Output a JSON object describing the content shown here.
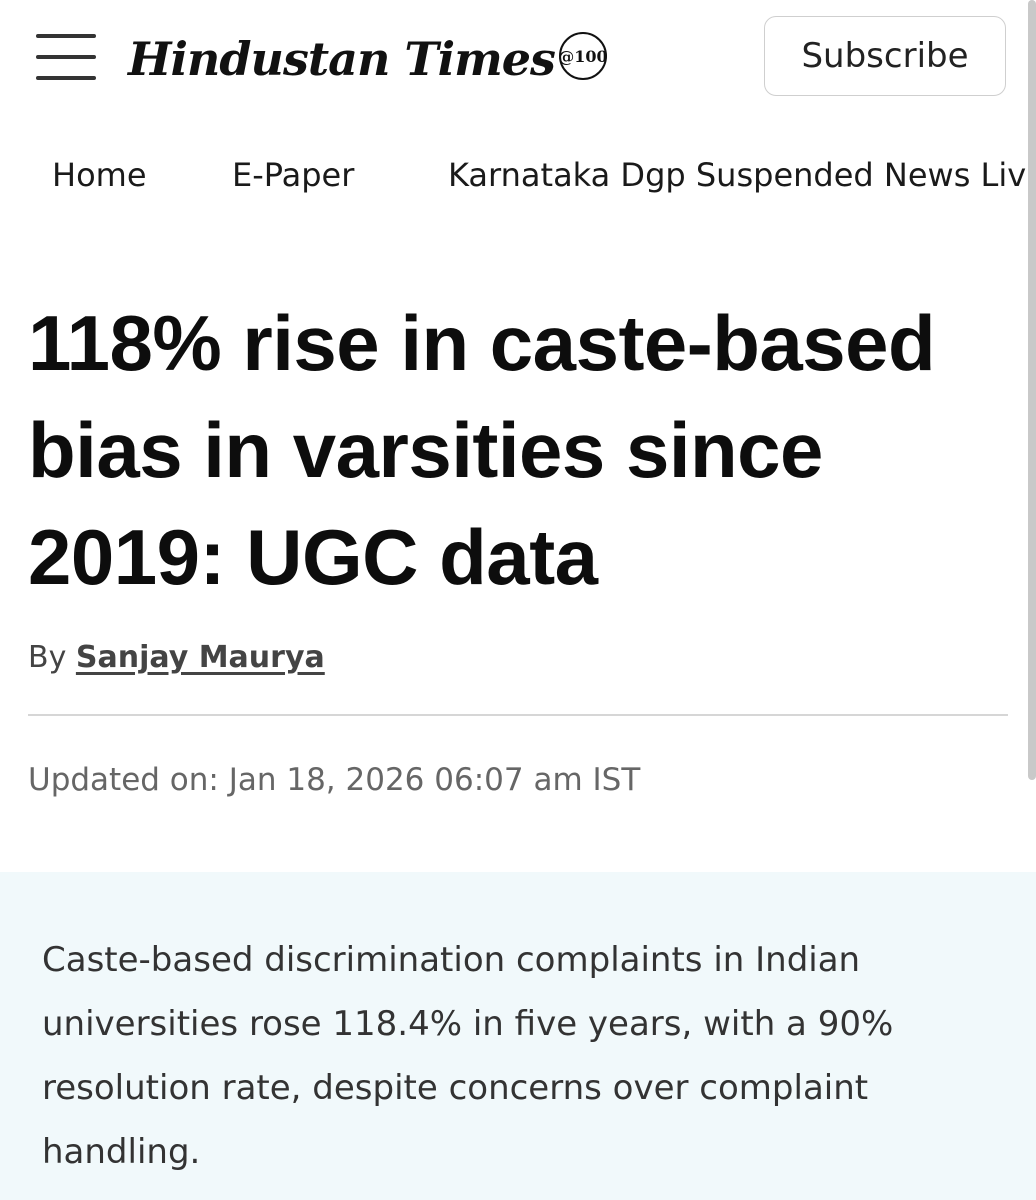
{
  "header": {
    "logo_text": "Hindustan Times",
    "logo_badge": "@100",
    "subscribe_label": "Subscribe"
  },
  "nav": {
    "items": [
      {
        "label": "Home"
      },
      {
        "label": "E-Paper"
      },
      {
        "label": "Karnataka Dgp Suspended News Live"
      }
    ]
  },
  "article": {
    "headline": "118% rise in caste-based bias in varsities since 2019: UGC data",
    "byline_prefix": "By",
    "author": "Sanjay Maurya",
    "updated": "Updated on: Jan 18, 2026 06:07 am IST",
    "summary": "Caste-based discrimination complaints in Indian universities rose 118.4% in five years, with a 90% resolution rate, despite concerns over complaint handling."
  }
}
